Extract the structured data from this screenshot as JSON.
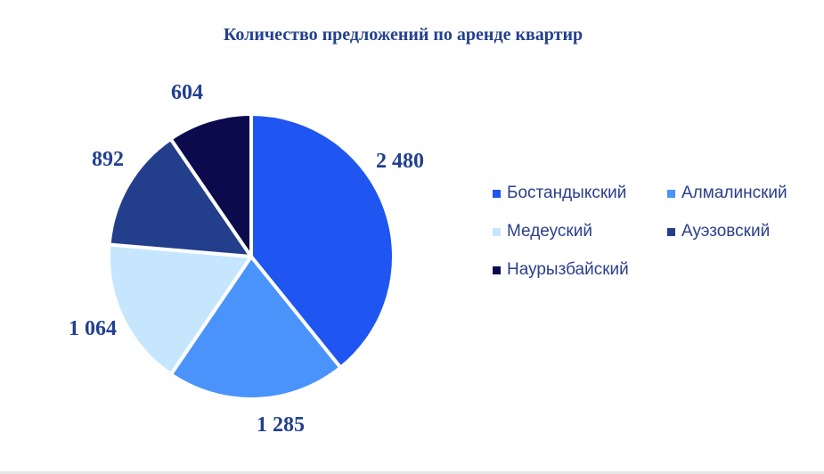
{
  "chart_data": {
    "type": "pie",
    "title": "Количество предложений по аренде квартир",
    "categories": [
      "Бостандыкский",
      "Алмалинский",
      "Медеуский",
      "Ауэзовский",
      "Наурызбайский"
    ],
    "values": [
      2480,
      1285,
      1064,
      892,
      604
    ],
    "value_labels": [
      "2 480",
      "1 285",
      "1 064",
      "892",
      "604"
    ],
    "colors": [
      "#1f55f0",
      "#4a93fb",
      "#c6e6fd",
      "#233f8b",
      "#0a0a4d"
    ],
    "legend_position": "right",
    "start_angle": "12 o'clock, clockwise"
  }
}
